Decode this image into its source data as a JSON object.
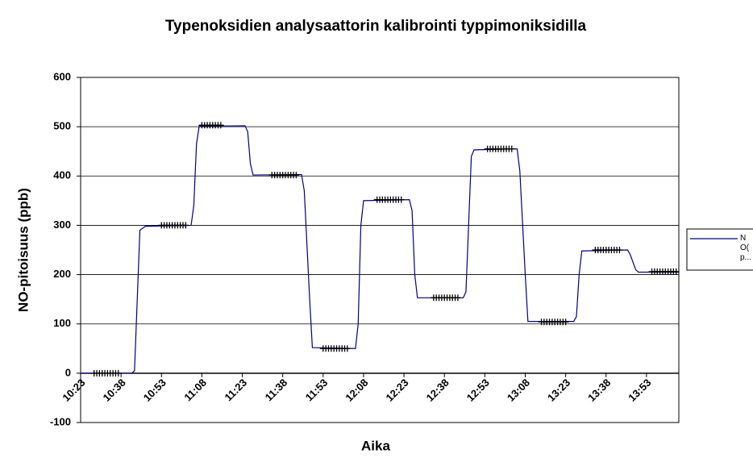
{
  "chart_data": {
    "type": "line",
    "title": "Typenoksidien analysaattorin kalibrointi typpimoniksidilla",
    "x_label": "Aika",
    "y_label": "NO-pitoisuus (ppb)",
    "xlim": [
      "10:23",
      "14:05"
    ],
    "xticks": [
      "10:23",
      "10:38",
      "10:53",
      "11:08",
      "11:23",
      "11:38",
      "11:53",
      "12:08",
      "12:23",
      "12:38",
      "12:53",
      "13:08",
      "13:23",
      "13:38",
      "13:53"
    ],
    "ylim": [
      -100,
      600
    ],
    "yticks": [
      -100,
      0,
      100,
      200,
      300,
      400,
      500,
      600
    ],
    "grid": true,
    "legend": "right",
    "series": [
      {
        "name": "N O( p...",
        "color": "#000080",
        "x": [
          "10:23",
          "10:42",
          "10:43",
          "10:45",
          "10:47",
          "11:04",
          "11:05",
          "11:06",
          "11:07",
          "11:24",
          "11:25",
          "11:26",
          "11:27",
          "11:45",
          "11:46",
          "11:48",
          "11:49",
          "12:05",
          "12:06",
          "12:07",
          "12:08",
          "12:25",
          "12:26",
          "12:27",
          "12:28",
          "12:45",
          "12:46",
          "12:48",
          "12:49",
          "13:05",
          "13:06",
          "13:08",
          "13:09",
          "13:26",
          "13:27",
          "13:28",
          "13:29",
          "13:46",
          "13:47",
          "13:49",
          "13:50",
          "14:05"
        ],
        "values": [
          0,
          0,
          5,
          290,
          298,
          300,
          340,
          465,
          501,
          502,
          490,
          425,
          402,
          403,
          370,
          150,
          52,
          50,
          100,
          300,
          350,
          352,
          330,
          200,
          153,
          153,
          165,
          440,
          453,
          455,
          410,
          200,
          105,
          105,
          115,
          200,
          248,
          250,
          240,
          210,
          205,
          205
        ]
      },
      {
        "color": "#000000",
        "marker": "+",
        "x": [
          "10:28",
          "10:29",
          "10:30",
          "10:31",
          "10:32",
          "10:33",
          "10:34",
          "10:35",
          "10:36",
          "10:37",
          "10:53",
          "10:54",
          "10:55",
          "10:56",
          "10:57",
          "10:58",
          "10:59",
          "11:00",
          "11:01",
          "11:02",
          "11:08",
          "11:09",
          "11:10",
          "11:11",
          "11:12",
          "11:13",
          "11:14",
          "11:15",
          "11:34",
          "11:35",
          "11:36",
          "11:37",
          "11:38",
          "11:39",
          "11:40",
          "11:41",
          "11:42",
          "11:43",
          "11:53",
          "11:54",
          "11:55",
          "11:56",
          "11:57",
          "11:58",
          "11:59",
          "12:00",
          "12:01",
          "12:02",
          "12:13",
          "12:14",
          "12:15",
          "12:16",
          "12:17",
          "12:18",
          "12:19",
          "12:20",
          "12:21",
          "12:22",
          "12:34",
          "12:35",
          "12:36",
          "12:37",
          "12:38",
          "12:39",
          "12:40",
          "12:41",
          "12:42",
          "12:43",
          "12:54",
          "12:55",
          "12:56",
          "12:57",
          "12:58",
          "12:59",
          "13:00",
          "13:01",
          "13:02",
          "13:03",
          "13:14",
          "13:15",
          "13:16",
          "13:17",
          "13:18",
          "13:19",
          "13:20",
          "13:21",
          "13:22",
          "13:23",
          "13:34",
          "13:35",
          "13:36",
          "13:37",
          "13:38",
          "13:39",
          "13:40",
          "13:41",
          "13:42",
          "13:43",
          "13:55",
          "13:56",
          "13:57",
          "13:58",
          "13:59",
          "14:00",
          "14:01",
          "14:02",
          "14:03",
          "14:04"
        ],
        "values": [
          0,
          0,
          0,
          0,
          0,
          0,
          0,
          0,
          0,
          0,
          300,
          300,
          300,
          300,
          300,
          300,
          300,
          300,
          300,
          300,
          503,
          503,
          503,
          503,
          503,
          503,
          503,
          503,
          402,
          402,
          402,
          402,
          402,
          402,
          402,
          402,
          402,
          402,
          50,
          50,
          50,
          50,
          50,
          50,
          50,
          50,
          50,
          50,
          352,
          352,
          352,
          352,
          352,
          352,
          352,
          352,
          352,
          352,
          153,
          153,
          153,
          153,
          153,
          153,
          153,
          153,
          153,
          153,
          455,
          455,
          455,
          455,
          455,
          455,
          455,
          455,
          455,
          455,
          104,
          104,
          104,
          104,
          104,
          104,
          104,
          104,
          104,
          104,
          250,
          250,
          250,
          250,
          250,
          250,
          250,
          250,
          250,
          250,
          206,
          206,
          206,
          206,
          206,
          206,
          206,
          206,
          206,
          206
        ]
      }
    ]
  }
}
